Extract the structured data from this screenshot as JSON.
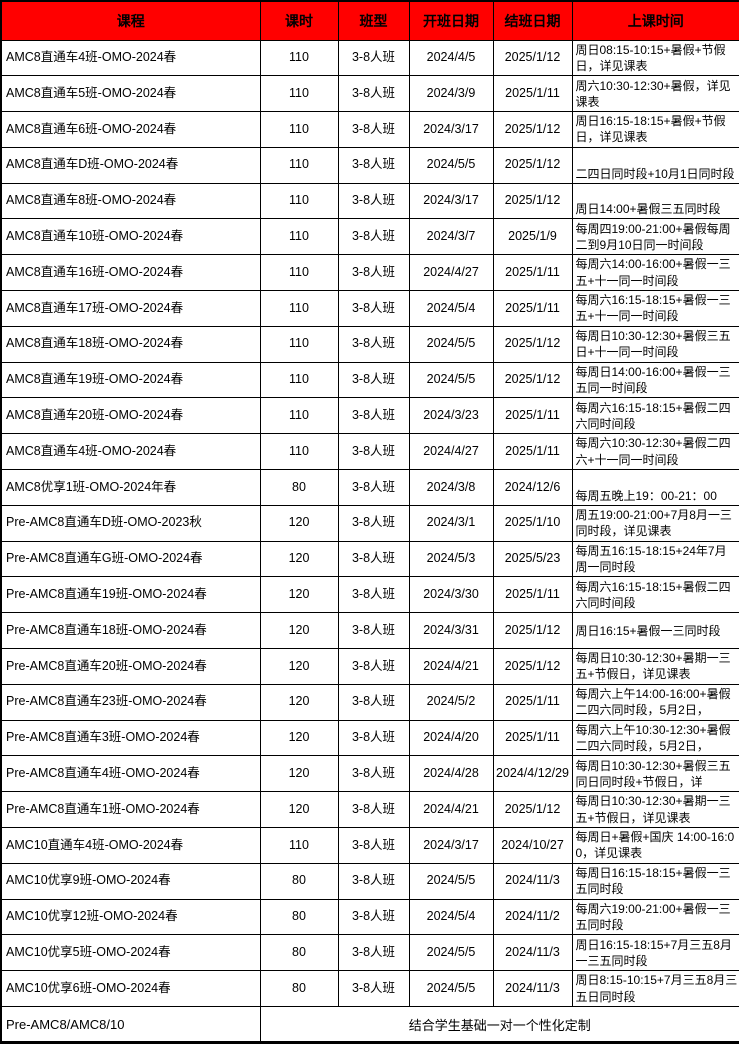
{
  "colors": {
    "header_bg": "#ff0000",
    "header_text": "#000000",
    "border": "#000000",
    "cell_bg": "#ffffff"
  },
  "table": {
    "columns": [
      {
        "key": "course",
        "label": "课程"
      },
      {
        "key": "hours",
        "label": "课时"
      },
      {
        "key": "class_type",
        "label": "班型"
      },
      {
        "key": "start_date",
        "label": "开班日期"
      },
      {
        "key": "end_date",
        "label": "结班日期"
      },
      {
        "key": "schedule",
        "label": "上课时间"
      }
    ],
    "rows": [
      {
        "course": "AMC8直通车4班-OMO-2024春",
        "hours": "110",
        "class_type": "3-8人班",
        "start_date": "2024/4/5",
        "end_date": "2025/1/12",
        "schedule": "周日08:15-10:15+暑假+节假日，详见课表",
        "schedule_valign": "middle"
      },
      {
        "course": "AMC8直通车5班-OMO-2024春",
        "hours": "110",
        "class_type": "3-8人班",
        "start_date": "2024/3/9",
        "end_date": "2025/1/11",
        "schedule": "周六10:30-12:30+暑假，详见课表",
        "schedule_valign": "middle"
      },
      {
        "course": "AMC8直通车6班-OMO-2024春",
        "hours": "110",
        "class_type": "3-8人班",
        "start_date": "2024/3/17",
        "end_date": "2025/1/12",
        "schedule": "周日16:15-18:15+暑假+节假日，详见课表",
        "schedule_valign": "middle"
      },
      {
        "course": "AMC8直通车D班-OMO-2024春",
        "hours": "110",
        "class_type": "3-8人班",
        "start_date": "2024/5/5",
        "end_date": "2025/1/12",
        "schedule": "二四日同时段+10月1日同时段",
        "schedule_valign": "bottom"
      },
      {
        "course": "AMC8直通车8班-OMO-2024春",
        "hours": "110",
        "class_type": "3-8人班",
        "start_date": "2024/3/17",
        "end_date": "2025/1/12",
        "schedule": "周日14:00+暑假三五同时段",
        "schedule_valign": "bottom"
      },
      {
        "course": "AMC8直通车10班-OMO-2024春",
        "hours": "110",
        "class_type": "3-8人班",
        "start_date": "2024/3/7",
        "end_date": "2025/1/9",
        "schedule": "每周四19:00-21:00+暑假每周二到9月10日同一时间段",
        "schedule_valign": "middle"
      },
      {
        "course": "AMC8直通车16班-OMO-2024春",
        "hours": "110",
        "class_type": "3-8人班",
        "start_date": "2024/4/27",
        "end_date": "2025/1/11",
        "schedule": "每周六14:00-16:00+暑假一三五+十一同一时间段",
        "schedule_valign": "middle"
      },
      {
        "course": "AMC8直通车17班-OMO-2024春",
        "hours": "110",
        "class_type": "3-8人班",
        "start_date": "2024/5/4",
        "end_date": "2025/1/11",
        "schedule": "每周六16:15-18:15+暑假一三五+十一同一时间段",
        "schedule_valign": "middle"
      },
      {
        "course": "AMC8直通车18班-OMO-2024春",
        "hours": "110",
        "class_type": "3-8人班",
        "start_date": "2024/5/5",
        "end_date": "2025/1/12",
        "schedule": "每周日10:30-12:30+暑假三五日+十一同一时间段",
        "schedule_valign": "middle"
      },
      {
        "course": "AMC8直通车19班-OMO-2024春",
        "hours": "110",
        "class_type": "3-8人班",
        "start_date": "2024/5/5",
        "end_date": "2025/1/12",
        "schedule": "每周日14:00-16:00+暑假一三五同一时间段",
        "schedule_valign": "middle"
      },
      {
        "course": "AMC8直通车20班-OMO-2024春",
        "hours": "110",
        "class_type": "3-8人班",
        "start_date": "2024/3/23",
        "end_date": "2025/1/11",
        "schedule": "每周六16:15-18:15+暑假二四六同时间段",
        "schedule_valign": "middle"
      },
      {
        "course": "AMC8直通车4班-OMO-2024春",
        "hours": "110",
        "class_type": "3-8人班",
        "start_date": "2024/4/27",
        "end_date": "2025/1/11",
        "schedule": "每周六10:30-12:30+暑假二四六+十一同一时间段",
        "schedule_valign": "middle"
      },
      {
        "course": "AMC8优享1班-OMO-2024年春",
        "hours": "80",
        "class_type": "3-8人班",
        "start_date": "2024/3/8",
        "end_date": "2024/12/6",
        "schedule": "每周五晚上19：00-21：00",
        "schedule_valign": "bottom"
      },
      {
        "course": "Pre-AMC8直通车D班-OMO-2023秋",
        "hours": "120",
        "class_type": "3-8人班",
        "start_date": "2024/3/1",
        "end_date": "2025/1/10",
        "schedule": "周五19:00-21:00+7月8月一三同时段，详见课表",
        "schedule_valign": "middle"
      },
      {
        "course": "Pre-AMC8直通车G班-OMO-2024春",
        "hours": "120",
        "class_type": "3-8人班",
        "start_date": "2024/5/3",
        "end_date": "2025/5/23",
        "schedule": "每周五16:15-18:15+24年7月周一同时段",
        "schedule_valign": "middle"
      },
      {
        "course": "Pre-AMC8直通车19班-OMO-2024春",
        "hours": "120",
        "class_type": "3-8人班",
        "start_date": "2024/3/30",
        "end_date": "2025/1/11",
        "schedule": "每周六16:15-18:15+暑假二四六同时间段",
        "schedule_valign": "middle"
      },
      {
        "course": "Pre-AMC8直通车18班-OMO-2024春",
        "hours": "120",
        "class_type": "3-8人班",
        "start_date": "2024/3/31",
        "end_date": "2025/1/12",
        "schedule": "周日16:15+暑假一三同时段",
        "schedule_valign": "middle"
      },
      {
        "course": "Pre-AMC8直通车20班-OMO-2024春",
        "hours": "120",
        "class_type": "3-8人班",
        "start_date": "2024/4/21",
        "end_date": "2025/1/12",
        "schedule": "每周日10:30-12:30+暑期一三五+节假日，详见课表",
        "schedule_valign": "middle"
      },
      {
        "course": "Pre-AMC8直通车23班-OMO-2024春",
        "hours": "120",
        "class_type": "3-8人班",
        "start_date": "2024/5/2",
        "end_date": "2025/1/11",
        "schedule": "每周六上午14:00-16:00+暑假二四六同时段，5月2日，",
        "schedule_valign": "middle"
      },
      {
        "course": "Pre-AMC8直通车3班-OMO-2024春",
        "hours": "120",
        "class_type": "3-8人班",
        "start_date": "2024/4/20",
        "end_date": "2025/1/11",
        "schedule": "每周六上午10:30-12:30+暑假二四六同时段，5月2日，",
        "schedule_valign": "middle"
      },
      {
        "course": "Pre-AMC8直通车4班-OMO-2024春",
        "hours": "120",
        "class_type": "3-8人班",
        "start_date": "2024/4/28",
        "end_date": "2024/4/12/29",
        "schedule": "每周日10:30-12:30+暑假三五同日同时段+节假日，详",
        "schedule_valign": "middle"
      },
      {
        "course": "Pre-AMC8直通车1班-OMO-2024春",
        "hours": "120",
        "class_type": "3-8人班",
        "start_date": "2024/4/21",
        "end_date": "2025/1/12",
        "schedule": "每周日10:30-12:30+暑期一三五+节假日，详见课表",
        "schedule_valign": "middle"
      },
      {
        "course": "AMC10直通车4班-OMO-2024春",
        "hours": "110",
        "class_type": "3-8人班",
        "start_date": "2024/3/17",
        "end_date": "2024/10/27",
        "schedule": "每周日+暑假+国庆 14:00-16:00，详见课表",
        "schedule_valign": "middle"
      },
      {
        "course": "AMC10优享9班-OMO-2024春",
        "hours": "80",
        "class_type": "3-8人班",
        "start_date": "2024/5/5",
        "end_date": "2024/11/3",
        "schedule": "每周日16:15-18:15+暑假一三五同时段",
        "schedule_valign": "middle"
      },
      {
        "course": "AMC10优享12班-OMO-2024春",
        "hours": "80",
        "class_type": "3-8人班",
        "start_date": "2024/5/4",
        "end_date": "2024/11/2",
        "schedule": "每周六19:00-21:00+暑假一三五同时段",
        "schedule_valign": "middle"
      },
      {
        "course": "AMC10优享5班-OMO-2024春",
        "hours": "80",
        "class_type": "3-8人班",
        "start_date": "2024/5/5",
        "end_date": "2024/11/3",
        "schedule": "周日16:15-18:15+7月三五8月一三五同时段",
        "schedule_valign": "middle"
      },
      {
        "course": "AMC10优享6班-OMO-2024春",
        "hours": "80",
        "class_type": "3-8人班",
        "start_date": "2024/5/5",
        "end_date": "2024/11/3",
        "schedule": "周日8:15-10:15+7月三五8月三五日同时段",
        "schedule_valign": "middle"
      }
    ],
    "footer": {
      "label": "Pre-AMC8/AMC8/10",
      "note": "结合学生基础一对一个性化定制"
    }
  }
}
